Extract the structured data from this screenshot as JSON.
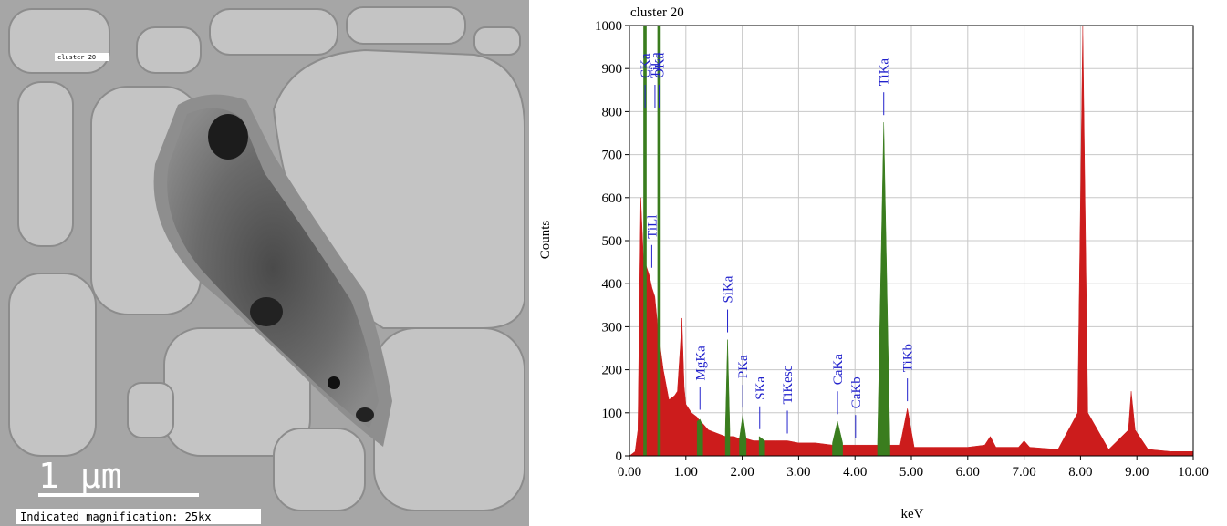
{
  "image": {
    "label": "cluster 20",
    "scale_bar": "1 μm",
    "caption": "Indicated magnification: 25kx"
  },
  "chart_data": {
    "type": "area",
    "title": "cluster 20",
    "x_label": "keV",
    "y_label": "Counts",
    "x": [
      0,
      0.1,
      0.15,
      0.2,
      0.25,
      0.277,
      0.3,
      0.35,
      0.4,
      0.45,
      0.5,
      0.525,
      0.55,
      0.6,
      0.7,
      0.8,
      0.85,
      0.9,
      0.93,
      0.97,
      1.0,
      1.1,
      1.2,
      1.25,
      1.3,
      1.4,
      1.5,
      1.6,
      1.7,
      1.74,
      1.78,
      1.85,
      1.95,
      2.01,
      2.07,
      2.2,
      2.3,
      2.4,
      2.6,
      2.8,
      3.0,
      3.3,
      3.6,
      3.69,
      3.78,
      4.0,
      4.2,
      4.4,
      4.51,
      4.62,
      4.8,
      4.93,
      5.05,
      5.4,
      6.0,
      6.3,
      6.4,
      6.5,
      6.9,
      7.0,
      7.1,
      7.6,
      7.95,
      8.04,
      8.13,
      8.5,
      8.85,
      8.9,
      8.97,
      9.2,
      9.6,
      10.0
    ],
    "series": [
      {
        "color": "#cc1c1c",
        "values": [
          0,
          10,
          60,
          600,
          450,
          450,
          440,
          420,
          390,
          370,
          300,
          280,
          250,
          200,
          130,
          140,
          150,
          250,
          320,
          160,
          120,
          100,
          90,
          80,
          75,
          60,
          55,
          50,
          45,
          45,
          45,
          45,
          40,
          40,
          40,
          35,
          35,
          35,
          35,
          35,
          30,
          30,
          25,
          25,
          25,
          25,
          25,
          25,
          25,
          25,
          25,
          110,
          20,
          20,
          20,
          25,
          45,
          20,
          20,
          35,
          20,
          15,
          100,
          1000,
          100,
          15,
          60,
          150,
          60,
          15,
          10,
          10
        ]
      },
      {
        "color": "#3a7d1e",
        "values": [
          null,
          null,
          null,
          null,
          1000,
          1000,
          1000,
          null,
          null,
          null,
          1000,
          1000,
          1000,
          null,
          null,
          null,
          null,
          null,
          null,
          null,
          null,
          null,
          80,
          85,
          70,
          null,
          null,
          null,
          60,
          270,
          60,
          null,
          40,
          95,
          40,
          null,
          45,
          35,
          null,
          null,
          null,
          null,
          30,
          80,
          30,
          null,
          null,
          30,
          775,
          30,
          null,
          null,
          null,
          null,
          null,
          null,
          null,
          null,
          null,
          null,
          null,
          null,
          null,
          null,
          null,
          null,
          null,
          null,
          null,
          null,
          null,
          null
        ]
      }
    ],
    "annotations": [
      {
        "text": "CKa",
        "x": 0.277
      },
      {
        "text": "TiLl",
        "x": 0.395
      },
      {
        "text": "TiLa",
        "x": 0.452
      },
      {
        "text": "OKa",
        "x": 0.525
      },
      {
        "text": "MgKa",
        "x": 1.25
      },
      {
        "text": "SiKa",
        "x": 1.74
      },
      {
        "text": "PKa",
        "x": 2.01
      },
      {
        "text": "SKa",
        "x": 2.31
      },
      {
        "text": "TiKesc",
        "x": 2.8
      },
      {
        "text": "CaKa",
        "x": 3.69
      },
      {
        "text": "CaKb",
        "x": 4.01
      },
      {
        "text": "TiKa",
        "x": 4.51
      },
      {
        "text": "TiKb",
        "x": 4.93
      }
    ],
    "annotation_color": "#2222cc",
    "xlim": [
      0,
      10
    ],
    "ylim": [
      0,
      1000
    ],
    "xticks": [
      {
        "value": 0,
        "label": "0.00"
      },
      {
        "value": 1,
        "label": "1.00"
      },
      {
        "value": 2,
        "label": "2.00"
      },
      {
        "value": 3,
        "label": "3.00"
      },
      {
        "value": 4,
        "label": "4.00"
      },
      {
        "value": 5,
        "label": "5.00"
      },
      {
        "value": 6,
        "label": "6.00"
      },
      {
        "value": 7,
        "label": "7.00"
      },
      {
        "value": 8,
        "label": "8.00"
      },
      {
        "value": 9,
        "label": "9.00"
      },
      {
        "value": 10,
        "label": "10.00"
      }
    ],
    "yticks": [
      0,
      100,
      200,
      300,
      400,
      500,
      600,
      700,
      800,
      900,
      1000
    ],
    "grid": true
  }
}
